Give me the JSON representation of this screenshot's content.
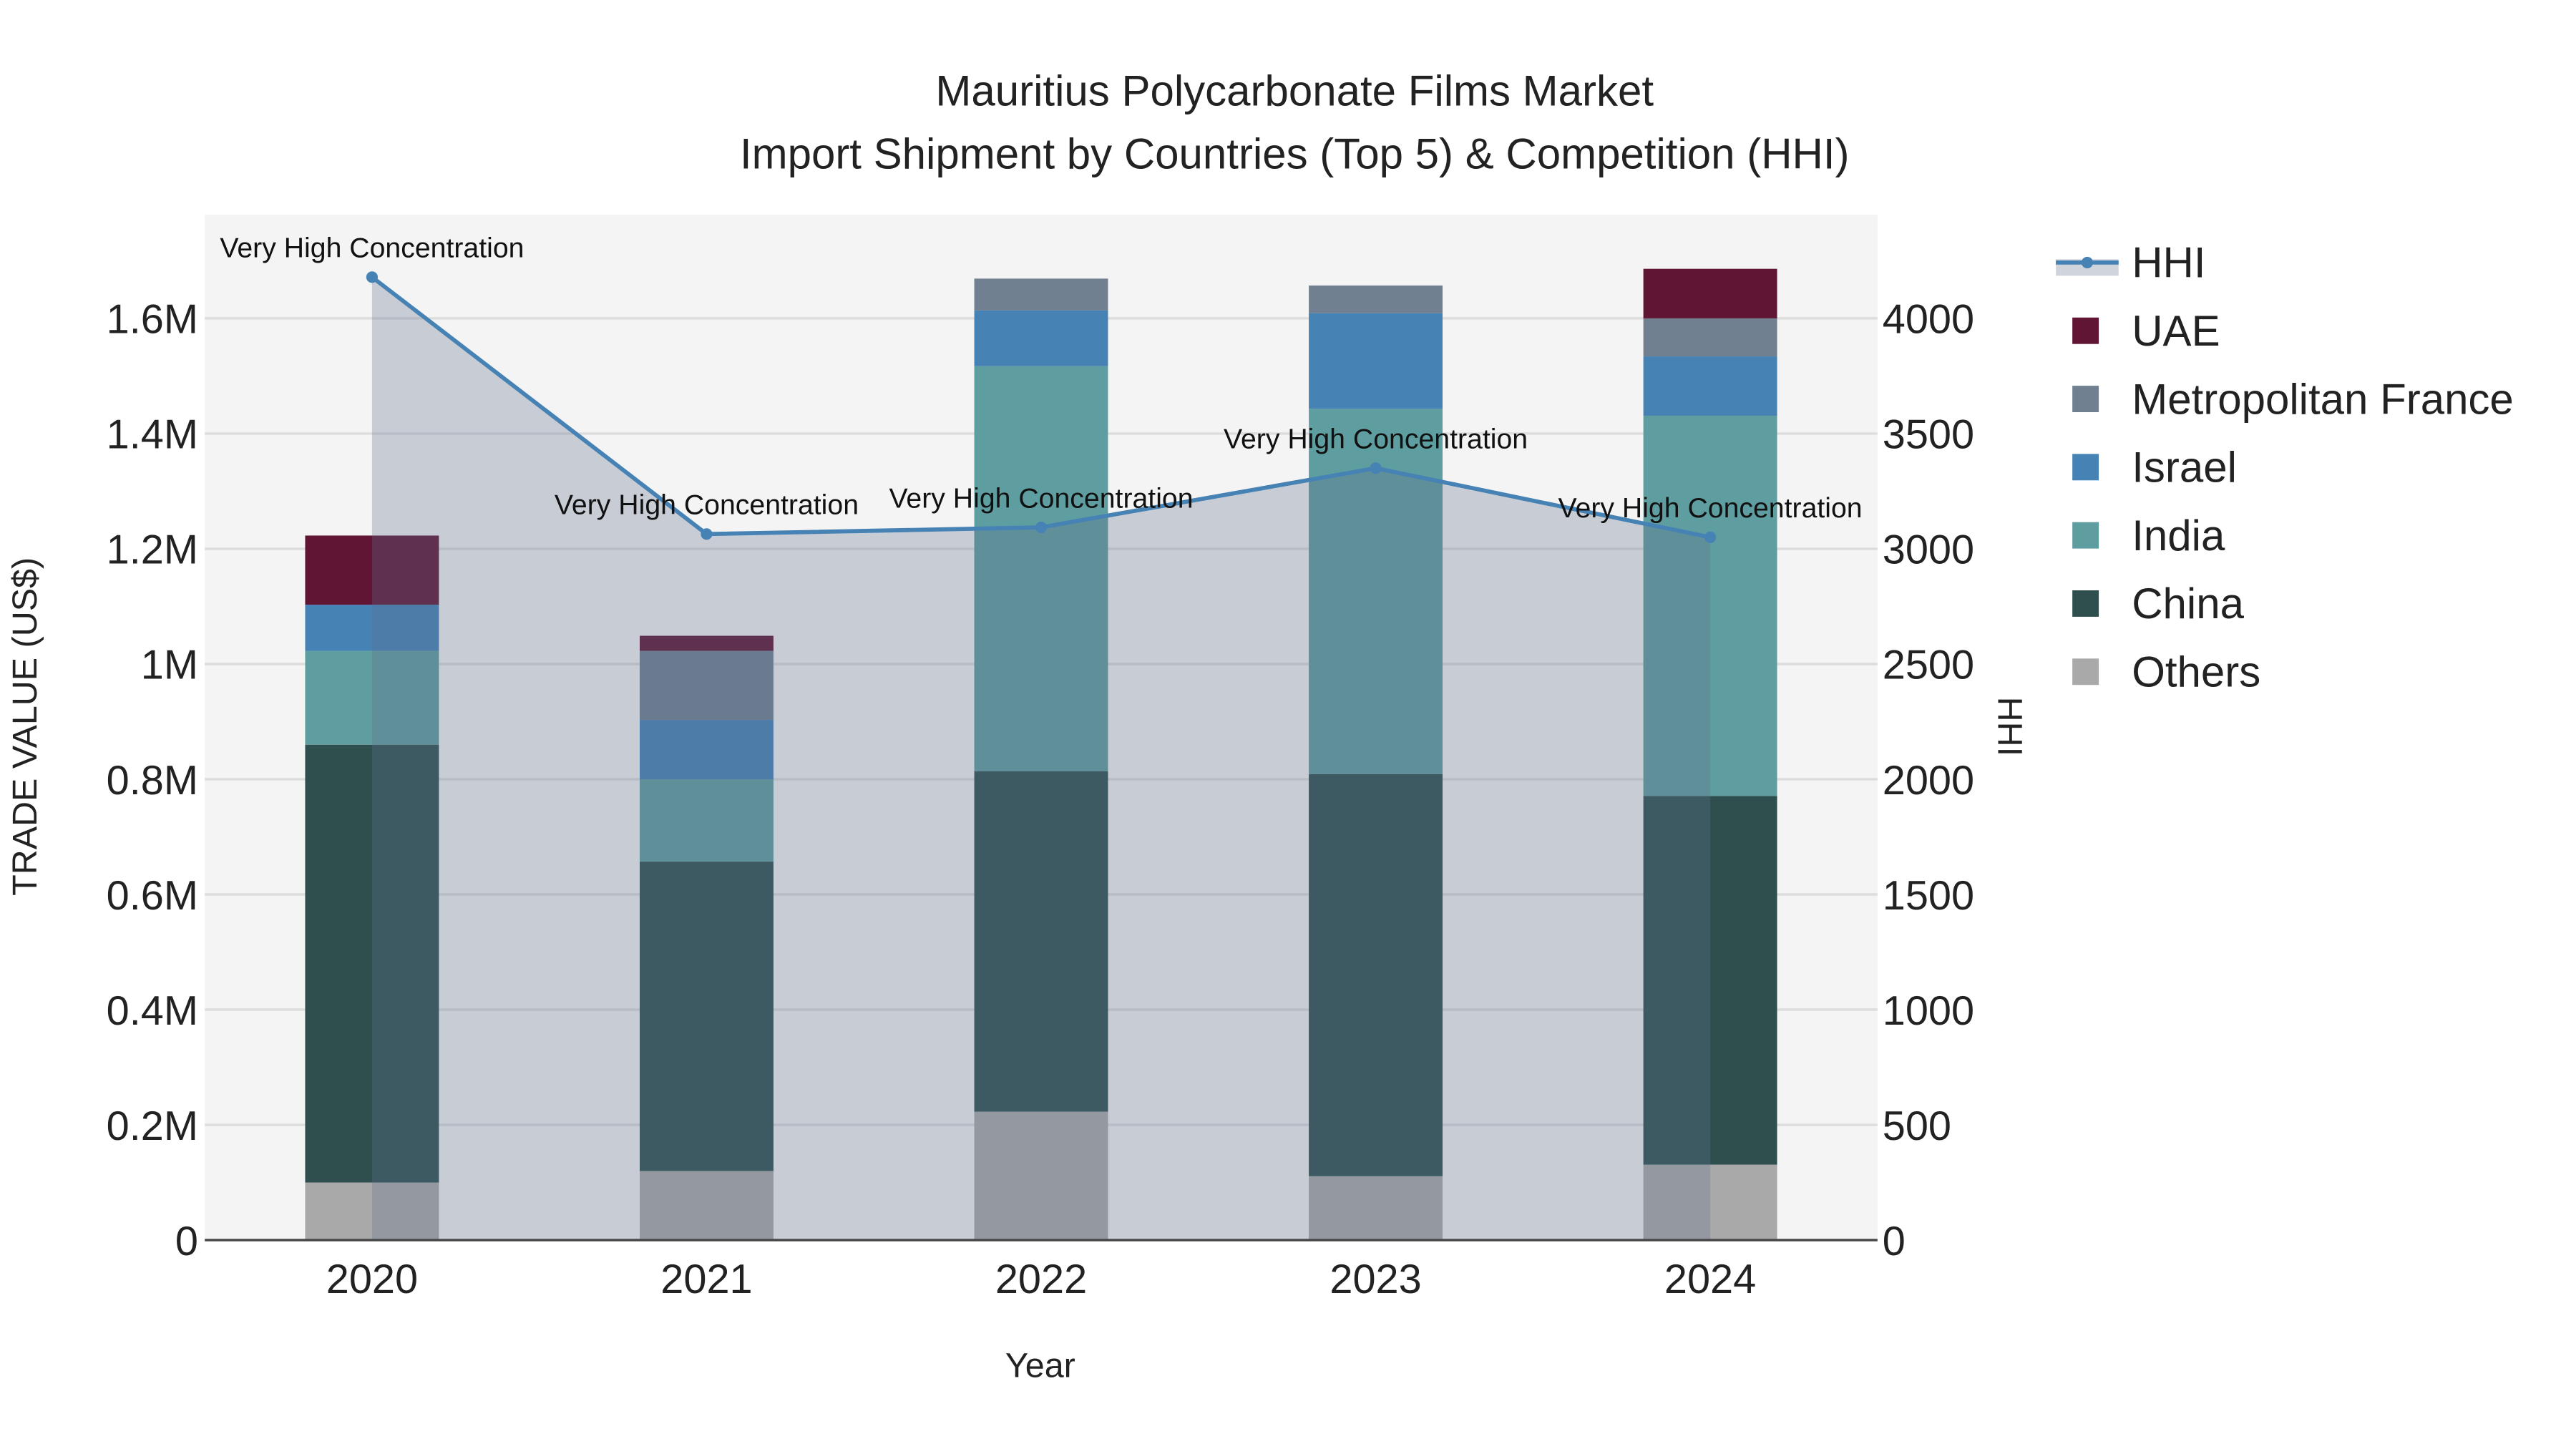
{
  "chart_data": {
    "type": "bar",
    "stacked": true,
    "title": "Mauritius Polycarbonate Films Market",
    "subtitle": "Import Shipment by Countries (Top 5) & Competition (HHI)",
    "xlabel": "Year",
    "ylabel": "TRADE VALUE (US$)",
    "y2label": "HHI",
    "categories": [
      "2020",
      "2021",
      "2022",
      "2023",
      "2024"
    ],
    "ylim": [
      0,
      1780000
    ],
    "y2lim": [
      0,
      4450
    ],
    "yticks": [
      0,
      200000,
      400000,
      600000,
      800000,
      1000000,
      1200000,
      1400000,
      1600000
    ],
    "ytick_labels": [
      "0",
      "0.2M",
      "0.4M",
      "0.6M",
      "0.8M",
      "1M",
      "1.2M",
      "1.4M",
      "1.6M"
    ],
    "y2ticks": [
      0,
      500,
      1000,
      1500,
      2000,
      2500,
      3000,
      3500,
      4000
    ],
    "y2tick_labels": [
      "0",
      "500",
      "1000",
      "1500",
      "2000",
      "2500",
      "3000",
      "3500",
      "4000"
    ],
    "series": [
      {
        "name": "Others",
        "color": "#a9a9a9",
        "values": [
          100000,
          120000,
          223000,
          111000,
          131000
        ]
      },
      {
        "name": "China",
        "color": "#2f4f4f",
        "values": [
          760000,
          537000,
          591000,
          698000,
          640000
        ]
      },
      {
        "name": "India",
        "color": "#5f9ea0",
        "values": [
          163000,
          143000,
          703000,
          634000,
          660000
        ]
      },
      {
        "name": "Israel",
        "color": "#4682b4",
        "values": [
          80000,
          103000,
          97000,
          166000,
          103000
        ]
      },
      {
        "name": "Metropolitan France",
        "color": "#708090",
        "values": [
          0,
          120000,
          55000,
          48000,
          66000
        ]
      },
      {
        "name": "UAE",
        "color": "#601535",
        "values": [
          120000,
          26000,
          0,
          0,
          86000
        ]
      }
    ],
    "hhi": {
      "name": "HHI",
      "color": "#4682b4",
      "values": [
        4179,
        3064,
        3093,
        3350,
        3050
      ],
      "annotations": [
        "Very High Concentration",
        "Very High Concentration",
        "Very High Concentration",
        "Very High Concentration",
        "Very High Concentration"
      ]
    },
    "legend_order": [
      "HHI",
      "UAE",
      "Metropolitan France",
      "Israel",
      "India",
      "China",
      "Others"
    ],
    "legend_position": "right",
    "grid": true
  }
}
